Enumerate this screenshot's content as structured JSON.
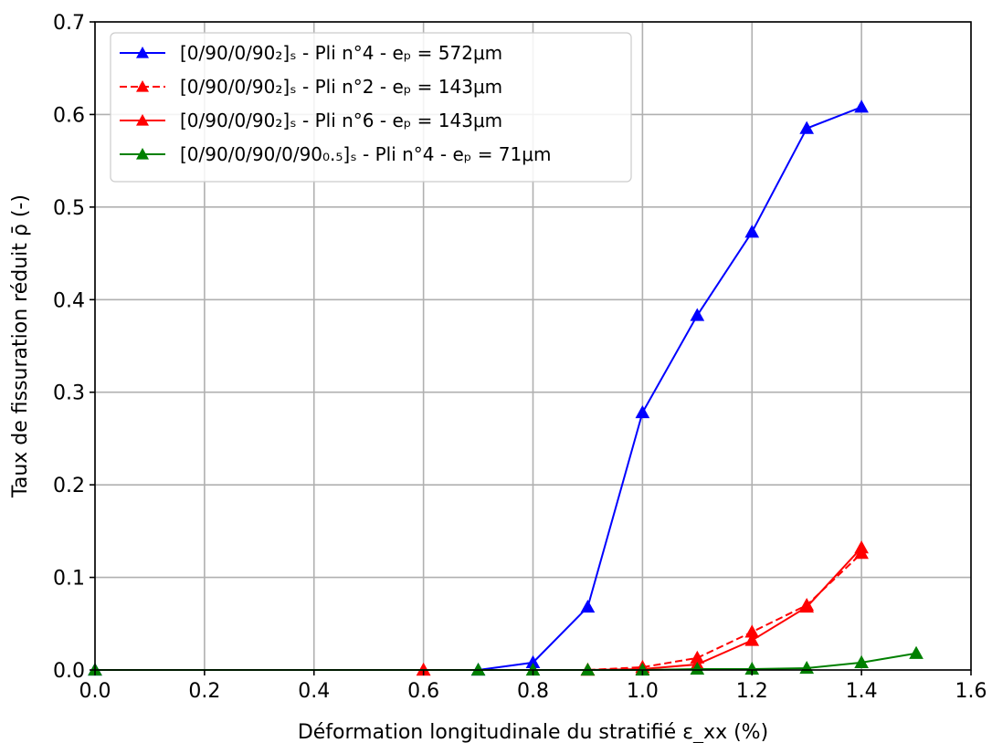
{
  "chart_data": {
    "type": "line",
    "title": "",
    "xlabel": "Déformation longitudinale du stratifié ε_xx (%)",
    "ylabel": "Taux de fissuration réduit ρ̄ (-)",
    "xlim": [
      0.0,
      1.6
    ],
    "ylim": [
      0.0,
      0.7
    ],
    "xticks": [
      0.0,
      0.2,
      0.4,
      0.6,
      0.8,
      1.0,
      1.2,
      1.4,
      1.6
    ],
    "yticks": [
      0.0,
      0.1,
      0.2,
      0.3,
      0.4,
      0.5,
      0.6,
      0.7
    ],
    "grid": true,
    "legend_position": "top-left",
    "series": [
      {
        "name": "[0/90/0/90₂]ₛ - Pli n°4 - eₚ = 572μm",
        "color": "#0000ff",
        "linestyle": "solid",
        "marker": "triangle",
        "points": [
          [
            0.0,
            0.0
          ],
          [
            0.7,
            0.0
          ],
          [
            0.8,
            0.008
          ],
          [
            0.9,
            0.068
          ],
          [
            1.0,
            0.278
          ],
          [
            1.1,
            0.383
          ],
          [
            1.2,
            0.473
          ],
          [
            1.3,
            0.585
          ],
          [
            1.4,
            0.608
          ]
        ]
      },
      {
        "name": "[0/90/0/90₂]ₛ - Pli n°2 - eₚ = 143μm",
        "color": "#ff0000",
        "linestyle": "dashed",
        "marker": "triangle",
        "points": [
          [
            0.6,
            0.0
          ],
          [
            0.9,
            0.0
          ],
          [
            1.0,
            0.003
          ],
          [
            1.1,
            0.013
          ],
          [
            1.2,
            0.041
          ],
          [
            1.3,
            0.07
          ],
          [
            1.4,
            0.126
          ]
        ]
      },
      {
        "name": "[0/90/0/90₂]ₛ - Pli n°6 - eₚ = 143μm",
        "color": "#ff0000",
        "linestyle": "solid",
        "marker": "triangle",
        "points": [
          [
            0.6,
            0.0
          ],
          [
            0.9,
            0.0
          ],
          [
            1.0,
            0.001
          ],
          [
            1.1,
            0.006
          ],
          [
            1.2,
            0.032
          ],
          [
            1.3,
            0.068
          ],
          [
            1.4,
            0.132
          ]
        ]
      },
      {
        "name": "[0/90/0/90/0/90₀.₅]ₛ - Pli n°4 - eₚ = 71μm",
        "color": "#008000",
        "linestyle": "solid",
        "marker": "triangle",
        "points": [
          [
            0.0,
            0.0
          ],
          [
            0.7,
            0.0
          ],
          [
            0.8,
            0.0
          ],
          [
            0.9,
            0.0
          ],
          [
            1.0,
            0.0
          ],
          [
            1.1,
            0.001
          ],
          [
            1.2,
            0.001
          ],
          [
            1.3,
            0.002
          ],
          [
            1.4,
            0.008
          ],
          [
            1.5,
            0.018
          ]
        ]
      }
    ]
  }
}
